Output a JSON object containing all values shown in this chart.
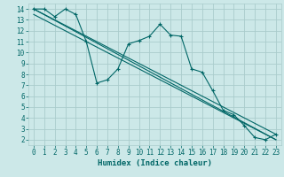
{
  "bg_color": "#cce8e8",
  "grid_color": "#aacccc",
  "line_color": "#006666",
  "xlabel": "Humidex (Indice chaleur)",
  "xlim": [
    -0.5,
    23.5
  ],
  "ylim": [
    1.5,
    14.5
  ],
  "xticks": [
    0,
    1,
    2,
    3,
    4,
    5,
    6,
    7,
    8,
    9,
    10,
    11,
    12,
    13,
    14,
    15,
    16,
    17,
    18,
    19,
    20,
    21,
    22,
    23
  ],
  "yticks": [
    2,
    3,
    4,
    5,
    6,
    7,
    8,
    9,
    10,
    11,
    12,
    13,
    14
  ],
  "line1_x": [
    0,
    1,
    2,
    3,
    4,
    5,
    6,
    7,
    8,
    9,
    10,
    11,
    12,
    13,
    14,
    15,
    16,
    17,
    18,
    19,
    20,
    21,
    22,
    23
  ],
  "line1_y": [
    14,
    14,
    13.3,
    14,
    13.5,
    11,
    7.2,
    7.5,
    8.5,
    10.8,
    11.1,
    11.5,
    12.6,
    11.6,
    11.5,
    8.5,
    8.2,
    6.5,
    4.7,
    4.3,
    3.3,
    2.2,
    2.0,
    2.5
  ],
  "line2_x": [
    0,
    23
  ],
  "line2_y": [
    14,
    2.5
  ],
  "line3_x": [
    0,
    23
  ],
  "line3_y": [
    14,
    2.5
  ],
  "line4_x": [
    0,
    23
  ],
  "line4_y": [
    13.5,
    2.0
  ],
  "line5_x": [
    0,
    23
  ],
  "line5_y": [
    14.0,
    2.0
  ],
  "xlabel_fontsize": 6.5,
  "tick_fontsize": 5.5
}
